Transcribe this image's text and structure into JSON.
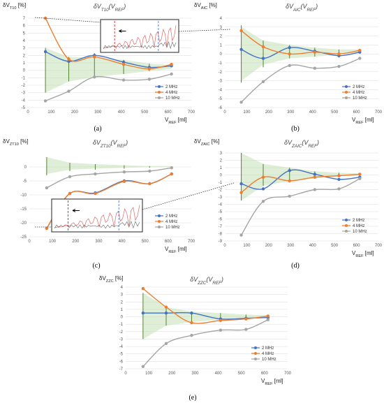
{
  "colors": {
    "s2": "#4472c4",
    "s4": "#ed7d31",
    "s10": "#a5a5a5",
    "band": "#c5e0b4",
    "whisker": "#548235"
  },
  "chart_data": [
    {
      "id": "a",
      "type": "line",
      "caption": "(a)",
      "title": "δV",
      "title_sub": "T10",
      "title_arg": "(V",
      "title_arg_sub": "REF",
      "title_end": ")",
      "ylabel": "δV",
      "ylabel_sub": "T10",
      "ylabel_unit": "[%]",
      "xlabel": "V",
      "xlabel_sub": "REF",
      "xlabel_unit": "[ml]",
      "xlim": [
        0,
        700
      ],
      "xticks": [
        0,
        100,
        200,
        300,
        400,
        500,
        600,
        700
      ],
      "ylim": [
        -5,
        7
      ],
      "yticks": [
        7,
        6,
        5,
        4,
        3,
        2,
        1,
        0,
        -1,
        -2,
        -3,
        -4,
        -5
      ],
      "x": [
        75,
        175,
        285,
        410,
        520,
        615
      ],
      "series": [
        {
          "name": "2 MHz",
          "color": "s2",
          "values": [
            2.5,
            1.2,
            2.0,
            1.1,
            0.4,
            0.6
          ]
        },
        {
          "name": "4 MHz",
          "color": "s4",
          "values": [
            7.0,
            1.5,
            1.8,
            0.8,
            0.2,
            0.8
          ]
        },
        {
          "name": "10 MHz",
          "color": "s10",
          "values": [
            -4.1,
            -2.8,
            -0.9,
            -1.3,
            -1.2,
            -0.5
          ]
        }
      ],
      "band": {
        "upper": [
          3.0,
          1.8,
          1.7,
          1.4,
          0.9,
          0.7
        ],
        "lower": [
          -3.0,
          -1.5,
          -0.9,
          -0.5,
          -0.1,
          0.2
        ]
      },
      "whiskers": [
        [
          3.0,
          -3.0
        ],
        [
          1.8,
          -1.5
        ],
        [
          2.3,
          -0.9
        ],
        [
          1.4,
          -0.5
        ],
        [
          0.9,
          -0.1
        ]
      ],
      "legend_pos": "bottom-right",
      "inset": true
    },
    {
      "id": "b",
      "type": "line",
      "caption": "(b)",
      "title": "δV",
      "title_sub": "AIC",
      "title_arg": "(V",
      "title_arg_sub": "REF",
      "title_end": ")",
      "ylabel": "δV",
      "ylabel_sub": "AIC",
      "ylabel_unit": "[%]",
      "xlabel": "V",
      "xlabel_sub": "REF",
      "xlabel_unit": "[ml]",
      "xlim": [
        0,
        700
      ],
      "xticks": [
        0,
        100,
        200,
        300,
        400,
        500,
        600,
        700
      ],
      "ylim": [
        -6,
        4
      ],
      "yticks": [
        4,
        3,
        2,
        1,
        0,
        -1,
        -2,
        -3,
        -4,
        -5,
        -6
      ],
      "x": [
        75,
        175,
        295,
        410,
        520,
        615
      ],
      "series": [
        {
          "name": "2 MHz",
          "color": "s2",
          "values": [
            0.5,
            -0.5,
            0.7,
            0.3,
            -0.2,
            0.2
          ]
        },
        {
          "name": "4 MHz",
          "color": "s4",
          "values": [
            2.6,
            0.8,
            0.0,
            0.2,
            0.0,
            0.4
          ]
        },
        {
          "name": "10 MHz",
          "color": "s10",
          "values": [
            -5.4,
            -3.1,
            -1.3,
            -1.6,
            -1.4,
            -0.5
          ]
        }
      ],
      "band": {
        "upper": [
          3.0,
          1.5,
          1.0,
          0.7,
          0.5,
          0.5
        ],
        "lower": [
          -3.0,
          -1.2,
          -0.5,
          -0.3,
          -0.1,
          0.1
        ]
      },
      "whiskers": [
        [
          3.2,
          -3.2
        ],
        [
          1.5,
          -1.5
        ],
        [
          1.0,
          -0.5
        ],
        [
          0.7,
          -0.3
        ],
        [
          0.5,
          -0.4
        ]
      ],
      "legend_pos": "bottom-right",
      "inset": false
    },
    {
      "id": "c",
      "type": "line",
      "caption": "(c)",
      "title": "δV",
      "title_sub": "ZT10",
      "title_arg": "(V",
      "title_arg_sub": "REF",
      "title_end": ")",
      "ylabel": "δV",
      "ylabel_sub": "ZT10",
      "ylabel_unit": "[%]",
      "xlabel": "V",
      "xlabel_sub": "REF",
      "xlabel_unit": "[ml]",
      "xlim": [
        0,
        700
      ],
      "xticks": [
        0,
        100,
        200,
        300,
        400,
        500,
        600,
        700
      ],
      "ylim": [
        -25,
        5
      ],
      "yticks": [
        0,
        -5,
        -10,
        -15,
        -20,
        -25
      ],
      "x": [
        75,
        175,
        285,
        410,
        520,
        615
      ],
      "series": [
        {
          "name": "2 MHz",
          "color": "s2",
          "values": [
            -22,
            -9.5,
            -9.3,
            -5,
            -6,
            -2.5
          ]
        },
        {
          "name": "4 MHz",
          "color": "s4",
          "values": [
            -22,
            -9.5,
            -9.5,
            -5.2,
            -6,
            -2.5
          ]
        },
        {
          "name": "10 MHz",
          "color": "s10",
          "values": [
            -7.5,
            -3.5,
            -2.5,
            -1.8,
            -1.5,
            -0.3
          ]
        }
      ],
      "band": {
        "upper": [
          3.5,
          1.5,
          1.0,
          0.6,
          0.3,
          0.3
        ],
        "lower": [
          -2.5,
          -1.0,
          -0.6,
          -0.3,
          -0.1,
          0.0
        ]
      },
      "whiskers": [
        [
          3.5,
          -3.0
        ],
        [
          1.5,
          -1.5
        ],
        [
          1.0,
          -1.0
        ],
        [
          0.6,
          -0.6
        ],
        [
          0.3,
          -0.3
        ]
      ],
      "legend_pos": "bottom-right",
      "inset": true
    },
    {
      "id": "d",
      "type": "line",
      "caption": "(d)",
      "title": "δV",
      "title_sub": "ZAIC",
      "title_arg": "(V",
      "title_arg_sub": "REF",
      "title_end": ")",
      "ylabel": "δV",
      "ylabel_sub": "ZAIC",
      "ylabel_unit": "[%]",
      "xlabel": "V",
      "xlabel_sub": "REF",
      "xlabel_unit": "[ml]",
      "xlim": [
        0,
        700
      ],
      "xticks": [
        0,
        100,
        200,
        300,
        400,
        500,
        600,
        700
      ],
      "ylim": [
        -9,
        3
      ],
      "yticks": [
        3,
        2,
        1,
        0,
        -1,
        -2,
        -3,
        -4,
        -5,
        -6,
        -7,
        -8,
        -9
      ],
      "x": [
        75,
        175,
        295,
        410,
        520,
        615
      ],
      "series": [
        {
          "name": "2 MHz",
          "color": "s2",
          "values": [
            -1.2,
            -1.9,
            0.6,
            0.1,
            -0.6,
            -0.3
          ]
        },
        {
          "name": "4 MHz",
          "color": "s4",
          "values": [
            -2.4,
            -0.3,
            -0.8,
            -0.3,
            -0.1,
            0.1
          ]
        },
        {
          "name": "10 MHz",
          "color": "s10",
          "values": [
            -8.2,
            -3.6,
            -2.9,
            -2.0,
            -1.9,
            -0.5
          ]
        }
      ],
      "band": {
        "upper": [
          3.0,
          1.5,
          1.0,
          0.5,
          0.3,
          0.2
        ],
        "lower": [
          -3.5,
          -1.5,
          -0.8,
          -0.5,
          -0.2,
          -0.1
        ]
      },
      "whiskers": [
        [
          3.0,
          -3.5
        ],
        [
          1.5,
          -1.5
        ],
        [
          1.0,
          -0.8
        ],
        [
          0.5,
          -0.5
        ],
        [
          0.3,
          -0.3
        ]
      ],
      "legend_pos": "bottom-right",
      "inset": false
    },
    {
      "id": "e",
      "type": "line",
      "caption": "(e)",
      "title": "δV",
      "title_sub": "ZZC",
      "title_arg": "(V",
      "title_arg_sub": "REF",
      "title_end": ")",
      "ylabel": "δV",
      "ylabel_sub": "ZZC",
      "ylabel_unit": "[%]",
      "xlabel": "V",
      "xlabel_sub": "REF",
      "xlabel_unit": "[ml]",
      "xlim": [
        0,
        700
      ],
      "xticks": [
        0,
        100,
        200,
        300,
        400,
        500,
        600,
        700
      ],
      "ylim": [
        -7,
        4
      ],
      "yticks": [
        4,
        3,
        2,
        1,
        0,
        -1,
        -2,
        -3,
        -4,
        -5,
        -6,
        -7
      ],
      "x": [
        75,
        175,
        285,
        410,
        520,
        615
      ],
      "series": [
        {
          "name": "2 MHz",
          "color": "s2",
          "values": [
            0.5,
            0.5,
            0.5,
            -0.3,
            -0.2,
            -0.1
          ]
        },
        {
          "name": "4 MHz",
          "color": "s4",
          "values": [
            3.8,
            1.3,
            -0.8,
            -0.5,
            -0.3,
            0.1
          ]
        },
        {
          "name": "10 MHz",
          "color": "s10",
          "values": [
            -6.7,
            -3.6,
            -2.5,
            -1.8,
            -1.7,
            -0.4
          ]
        }
      ],
      "band": {
        "upper": [
          3.2,
          1.3,
          0.7,
          0.5,
          0.3,
          0.2
        ],
        "lower": [
          -3.0,
          -1.2,
          -0.7,
          -0.4,
          -0.2,
          0.0
        ]
      },
      "whiskers": [
        [
          3.2,
          -3.0
        ],
        [
          1.3,
          -1.2
        ],
        [
          0.7,
          -0.7
        ],
        [
          0.5,
          -0.4
        ],
        [
          0.3,
          -0.2
        ]
      ],
      "legend_pos": "bottom-right",
      "inset": false
    }
  ]
}
